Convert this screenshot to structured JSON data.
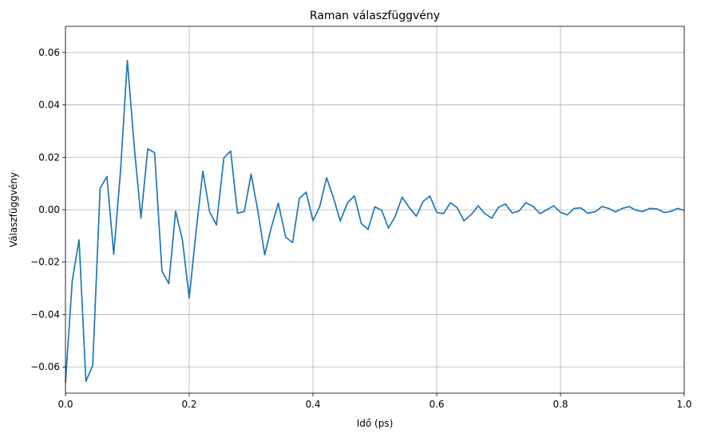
{
  "chart_data": {
    "type": "line",
    "title": "Raman válaszfüggvény",
    "xlabel": "Idő (ps)",
    "ylabel": "Válaszfüggvény",
    "xlim": [
      0,
      1.0
    ],
    "ylim": [
      -0.07,
      0.07
    ],
    "grid": true,
    "x_ticks": [
      0,
      0.2,
      0.4,
      0.6,
      0.8,
      1.0
    ],
    "x_tick_labels": [
      "0.0",
      "0.2",
      "0.4",
      "0.6",
      "0.8",
      "1.0"
    ],
    "y_ticks": [
      -0.06,
      -0.04,
      -0.02,
      0.0,
      0.02,
      0.04,
      0.06
    ],
    "y_tick_labels": [
      "−0.06",
      "−0.04",
      "−0.02",
      "0.00",
      "0.02",
      "0.04",
      "0.06"
    ],
    "series": [
      {
        "color": "#1f77b4",
        "x": [
          0.0,
          0.011,
          0.022,
          0.033,
          0.044,
          0.056,
          0.067,
          0.078,
          0.089,
          0.1,
          0.111,
          0.122,
          0.133,
          0.144,
          0.156,
          0.167,
          0.178,
          0.189,
          0.2,
          0.211,
          0.222,
          0.233,
          0.244,
          0.256,
          0.267,
          0.278,
          0.289,
          0.3,
          0.311,
          0.322,
          0.333,
          0.344,
          0.356,
          0.367,
          0.378,
          0.389,
          0.4,
          0.411,
          0.422,
          0.433,
          0.444,
          0.456,
          0.467,
          0.478,
          0.489,
          0.5,
          0.511,
          0.522,
          0.533,
          0.544,
          0.556,
          0.567,
          0.578,
          0.589,
          0.6,
          0.611,
          0.622,
          0.633,
          0.644,
          0.656,
          0.667,
          0.678,
          0.689,
          0.7,
          0.711,
          0.722,
          0.733,
          0.744,
          0.756,
          0.767,
          0.778,
          0.789,
          0.8,
          0.811,
          0.822,
          0.833,
          0.844,
          0.856,
          0.867,
          0.878,
          0.889,
          0.9,
          0.911,
          0.922,
          0.933,
          0.944,
          0.956,
          0.967,
          0.978,
          0.989,
          1.0
        ],
        "y": [
          -0.066,
          -0.027,
          -0.0115,
          -0.0655,
          -0.0595,
          0.0082,
          0.0127,
          -0.017,
          0.0148,
          0.057,
          0.0245,
          -0.0032,
          0.0232,
          0.0218,
          -0.0235,
          -0.0282,
          -0.0005,
          -0.0115,
          -0.0337,
          -0.0085,
          0.0147,
          -0.0008,
          -0.0058,
          0.0198,
          0.0224,
          -0.0013,
          -0.0007,
          0.0136,
          -0.0005,
          -0.0172,
          -0.0065,
          0.0025,
          -0.0105,
          -0.0125,
          0.0043,
          0.0067,
          -0.0042,
          0.0013,
          0.0122,
          0.0047,
          -0.0043,
          0.0027,
          0.0053,
          -0.0052,
          -0.0075,
          0.0011,
          -0.0002,
          -0.007,
          -0.0025,
          0.0048,
          0.0007,
          -0.0025,
          0.0032,
          0.0052,
          -0.001,
          -0.0015,
          0.0027,
          0.0008,
          -0.0042,
          -0.0018,
          0.0015,
          -0.0015,
          -0.0032,
          0.001,
          0.0022,
          -0.0012,
          -0.0005,
          0.0027,
          0.0012,
          -0.0015,
          0.0,
          0.0015,
          -0.001,
          -0.002,
          0.0005,
          0.0007,
          -0.0013,
          -0.0008,
          0.0012,
          0.0005,
          -0.0008,
          0.0005,
          0.0012,
          -0.0002,
          -0.0007,
          0.0005,
          0.0003,
          -0.001,
          -0.0007,
          0.0005,
          -0.0002
        ]
      }
    ]
  }
}
